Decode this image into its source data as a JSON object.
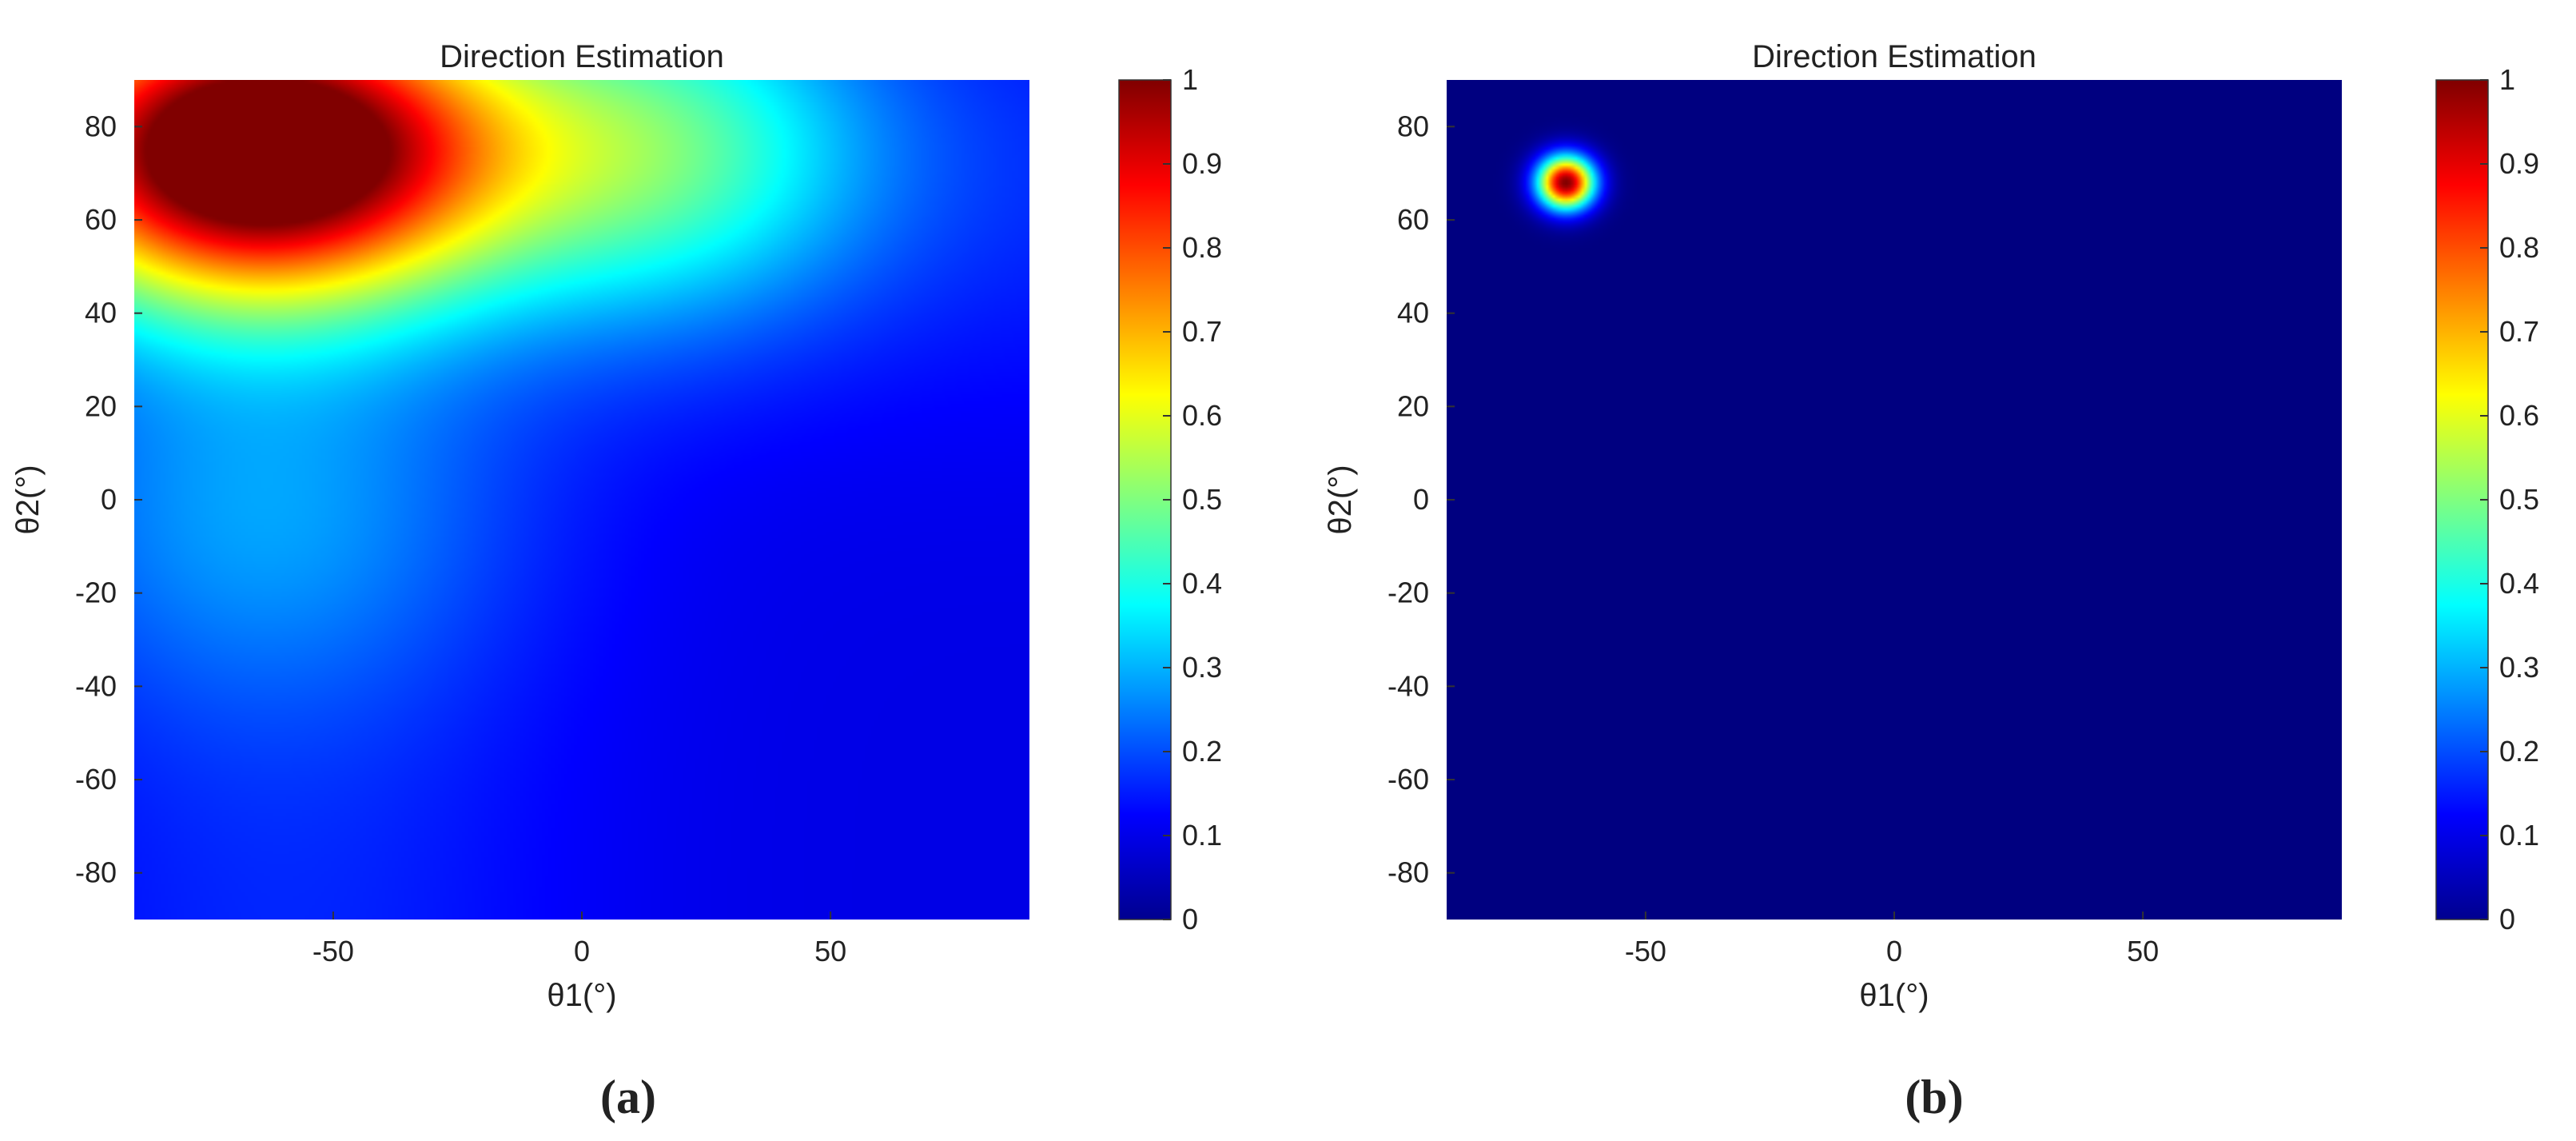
{
  "chart_data": [
    {
      "panel": "(a)",
      "type": "heatmap",
      "title": "Direction Estimation",
      "xlabel": "θ1(°)",
      "ylabel": "θ2(°)",
      "xlim": [
        -90,
        90
      ],
      "ylim": [
        -90,
        90
      ],
      "xticks": [
        -50,
        0,
        50
      ],
      "yticks": [
        80,
        60,
        40,
        20,
        0,
        -20,
        -40,
        -60,
        -80
      ],
      "colormap": "jet",
      "clim": [
        0,
        1
      ],
      "colorbar_ticks": [
        1,
        0.9,
        0.8,
        0.7,
        0.6,
        0.5,
        0.4,
        0.3,
        0.2,
        0.1,
        0
      ],
      "grid": false,
      "background_level": 0.1,
      "peaks": [
        {
          "x": -65,
          "y": 75,
          "value": 1.0,
          "spread_x": 33,
          "spread_y": 22
        },
        {
          "x": 15,
          "y": 75,
          "value": 0.3,
          "spread_x": 30,
          "spread_y": 25
        },
        {
          "x": -65,
          "y": -5,
          "value": 0.12,
          "spread_x": 35,
          "spread_y": 28
        }
      ],
      "ridges": [
        {
          "axis": "x",
          "center": -60,
          "width": 40,
          "value": 0.06
        },
        {
          "axis": "y",
          "center": 70,
          "width": 35,
          "value": 0.06
        }
      ]
    },
    {
      "panel": "(b)",
      "type": "heatmap",
      "title": "Direction Estimation",
      "xlabel": "θ1(°)",
      "ylabel": "θ2(°)",
      "xlim": [
        -90,
        90
      ],
      "ylim": [
        -90,
        90
      ],
      "xticks": [
        -50,
        0,
        50
      ],
      "yticks": [
        80,
        60,
        40,
        20,
        0,
        -20,
        -40,
        -60,
        -80
      ],
      "colormap": "jet",
      "clim": [
        0,
        1
      ],
      "colorbar_ticks": [
        1,
        0.9,
        0.8,
        0.7,
        0.6,
        0.5,
        0.4,
        0.3,
        0.2,
        0.1,
        0
      ],
      "grid": false,
      "background_level": 0.0,
      "peaks": [
        {
          "x": -66,
          "y": 68,
          "value": 1.0,
          "spread_x": 4,
          "spread_y": 4
        }
      ],
      "ridges": []
    }
  ]
}
